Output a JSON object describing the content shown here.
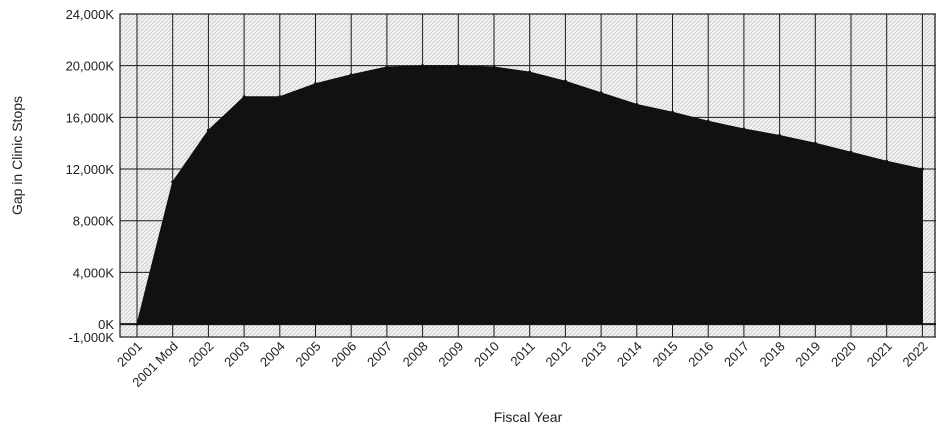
{
  "chart_data": {
    "type": "area",
    "title": "",
    "xlabel": "Fiscal Year",
    "ylabel": "Gap in Clinic Stops",
    "ylim": [
      -1000,
      24000
    ],
    "y_ticks": [
      24000,
      20000,
      16000,
      12000,
      8000,
      4000,
      0,
      -1000
    ],
    "y_tick_labels": [
      "24,000K",
      "20,000K",
      "16,000K",
      "12,000K",
      "8,000K",
      "4,000K",
      "0K",
      "-1,000K"
    ],
    "grid": true,
    "categories": [
      "2001",
      "2001 Mod",
      "2002",
      "2003",
      "2004",
      "2005",
      "2006",
      "2007",
      "2008",
      "2009",
      "2010",
      "2011",
      "2012",
      "2013",
      "2014",
      "2015",
      "2016",
      "2017",
      "2018",
      "2019",
      "2020",
      "2021",
      "2022"
    ],
    "series": [
      {
        "color": "#111111",
        "values": [
          0,
          11000,
          15000,
          17600,
          17600,
          18600,
          19300,
          19900,
          20000,
          20000,
          19900,
          19500,
          18800,
          17900,
          17000,
          16400,
          15700,
          15100,
          14600,
          14000,
          13300,
          12600,
          12000
        ]
      }
    ]
  }
}
